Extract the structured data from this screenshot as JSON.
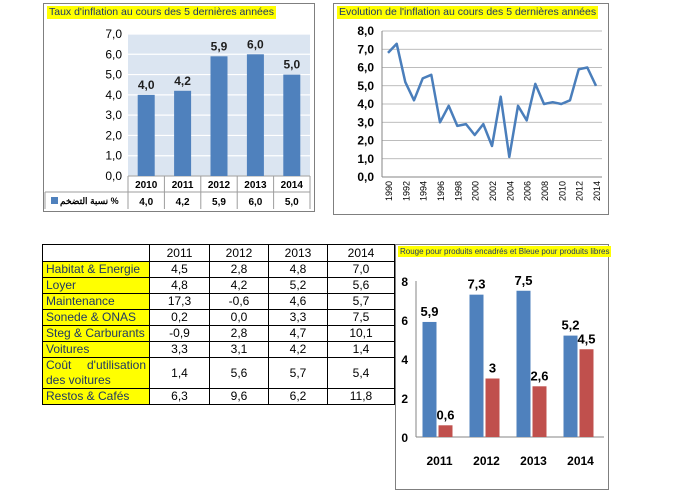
{
  "panel1": {
    "title": "Taux d'inflation au cours des 5 dernières années",
    "legend_label": "نسبة التضخم %"
  },
  "panel2": {
    "title": "Evolution de l'inflation au cours des 5 dernières années"
  },
  "panel4": {
    "title": "Rouge pour produits encadrés et Bleue pour produits  libres"
  },
  "table": {
    "headers": [
      "",
      "2011",
      "2012",
      "2013",
      "2014"
    ],
    "rows": [
      {
        "label": "Habitat & Energie",
        "values": [
          "4,5",
          "2,8",
          "4,8",
          "7,0"
        ]
      },
      {
        "label": "Loyer",
        "values": [
          "4,8",
          "4,2",
          "5,2",
          "5,6"
        ]
      },
      {
        "label": "Maintenance",
        "values": [
          "17,3",
          "-0,6",
          "4,6",
          "5,7"
        ]
      },
      {
        "label": "Sonede & ONAS",
        "values": [
          "0,2",
          "0,0",
          "3,3",
          "7,5"
        ]
      },
      {
        "label": "Steg & Carburants",
        "values": [
          "-0,9",
          "2,8",
          "4,7",
          "10,1"
        ]
      },
      {
        "label": "Voitures",
        "values": [
          "3,3",
          "3,1",
          "4,2",
          "1,4"
        ]
      },
      {
        "label": "Coût d'utilisation des voitures",
        "values": [
          "1,4",
          "5,6",
          "5,7",
          "5,4"
        ]
      },
      {
        "label": "Restos & Cafés",
        "values": [
          "6,3",
          "9,6",
          "6,2",
          "11,8"
        ]
      }
    ]
  },
  "colors": {
    "blue": "#4f81bd",
    "red": "#c0504d",
    "highlight": "#ffff00",
    "line": "#4a7ebb",
    "plot_bg": "#dbe5f1"
  },
  "chart_data": [
    {
      "type": "bar",
      "title": "Taux d'inflation au cours des 5 dernières années",
      "categories": [
        "2010",
        "2011",
        "2012",
        "2013",
        "2014"
      ],
      "series": [
        {
          "name": "نسبة التضخم %",
          "values": [
            4.0,
            4.2,
            5.9,
            6.0,
            5.0
          ]
        }
      ],
      "data_labels": [
        "4,0",
        "4,2",
        "5,9",
        "6,0",
        "5,0"
      ],
      "yticks": [
        "0,0",
        "1,0",
        "2,0",
        "3,0",
        "4,0",
        "5,0",
        "6,0",
        "7,0"
      ],
      "ylim": [
        0,
        7
      ],
      "grid": true,
      "data_table": true
    },
    {
      "type": "line",
      "title": "Evolution de l'inflation au cours des 5 dernières années",
      "x": [
        1990,
        1991,
        1992,
        1993,
        1994,
        1995,
        1996,
        1997,
        1998,
        1999,
        2000,
        2001,
        2002,
        2003,
        2004,
        2005,
        2006,
        2007,
        2008,
        2009,
        2010,
        2011,
        2012,
        2013,
        2014
      ],
      "values": [
        6.8,
        7.3,
        5.2,
        4.2,
        5.4,
        5.6,
        3.0,
        3.9,
        2.8,
        2.9,
        2.3,
        2.9,
        1.7,
        4.4,
        1.1,
        3.9,
        3.1,
        5.1,
        4.0,
        4.1,
        4.0,
        4.2,
        5.9,
        6.0,
        5.0
      ],
      "xticks": [
        "1990",
        "1992",
        "1994",
        "1996",
        "1998",
        "2000",
        "2002",
        "2004",
        "2006",
        "2008",
        "2010",
        "2012",
        "2014"
      ],
      "yticks": [
        "0,0",
        "1,0",
        "2,0",
        "3,0",
        "4,0",
        "5,0",
        "6,0",
        "7,0",
        "8,0"
      ],
      "ylim": [
        0,
        8
      ],
      "grid": true
    },
    {
      "type": "bar",
      "title": "Rouge pour produits encadrés et Bleue pour produits  libres",
      "categories": [
        "2011",
        "2012",
        "2013",
        "2014"
      ],
      "series": [
        {
          "color": "#4f81bd",
          "values": [
            5.9,
            7.3,
            7.5,
            5.2
          ],
          "labels": [
            "5,9",
            "7,3",
            "7,5",
            "5,2"
          ]
        },
        {
          "color": "#c0504d",
          "values": [
            0.6,
            3.0,
            2.6,
            4.5
          ],
          "labels": [
            "0,6",
            "3",
            "2,6",
            "4,5"
          ]
        }
      ],
      "yticks": [
        "0",
        "2",
        "4",
        "6",
        "8"
      ],
      "ylim": [
        0,
        8
      ],
      "grid": false
    }
  ]
}
